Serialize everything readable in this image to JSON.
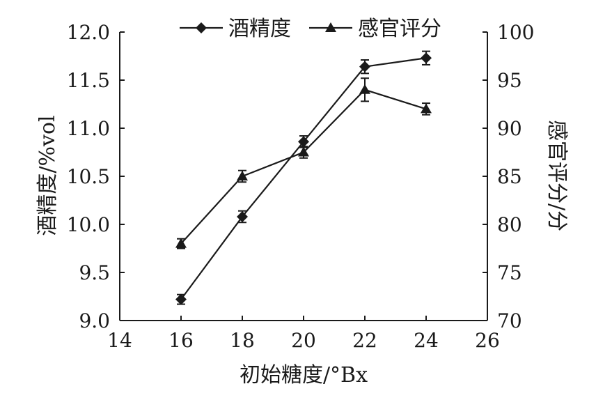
{
  "chart_data": {
    "type": "line",
    "x": [
      16,
      18,
      20,
      22,
      24
    ],
    "xlabel": "初始糖度/°Bx",
    "xlim": [
      14,
      26
    ],
    "xticks": [
      "14",
      "16",
      "18",
      "20",
      "22",
      "24",
      "26"
    ],
    "ylabel_left": "酒精度/%vol",
    "ylim_left": [
      9.0,
      12.0
    ],
    "yticks_left": [
      "9.0",
      "9.5",
      "10.0",
      "10.5",
      "11.0",
      "11.5",
      "12.0"
    ],
    "ylabel_right": "感官评分/分",
    "ylim_right": [
      70,
      100
    ],
    "yticks_right": [
      "70",
      "75",
      "80",
      "85",
      "90",
      "95",
      "100"
    ],
    "legend_position": "top-center",
    "grid": false,
    "series": [
      {
        "name": "酒精度",
        "axis": "left",
        "marker": "diamond",
        "values": [
          9.22,
          10.08,
          10.86,
          11.64,
          11.73
        ],
        "errors": [
          0.05,
          0.06,
          0.06,
          0.07,
          0.07
        ]
      },
      {
        "name": "感官评分",
        "axis": "right",
        "marker": "triangle",
        "values": [
          78,
          85,
          87.5,
          94,
          92
        ],
        "errors": [
          0.5,
          0.6,
          0.6,
          1.2,
          0.6
        ]
      }
    ]
  }
}
